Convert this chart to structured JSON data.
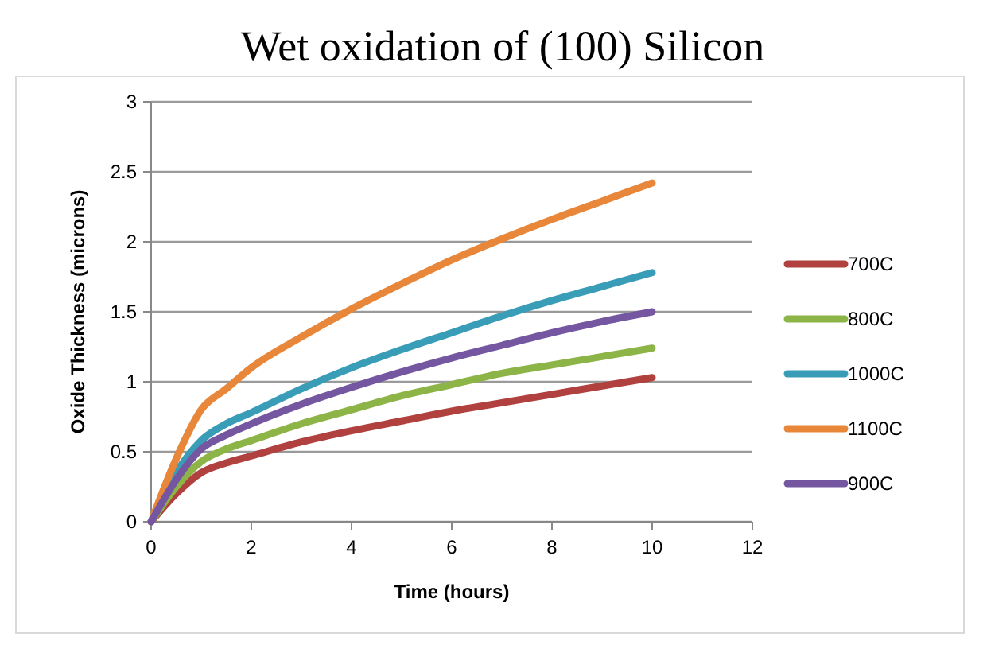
{
  "chart_data": {
    "type": "line",
    "title": "Wet oxidation of (100) Silicon",
    "xlabel": "Time (hours)",
    "ylabel": "Oxide Thickness (microns)",
    "x": [
      0,
      0.5,
      1,
      1.5,
      2,
      3,
      4,
      5,
      6,
      7,
      8,
      9,
      10
    ],
    "series": [
      {
        "name": "700C",
        "color": "#b0413e",
        "values": [
          0,
          0.2,
          0.35,
          0.42,
          0.47,
          0.57,
          0.65,
          0.72,
          0.79,
          0.85,
          0.91,
          0.97,
          1.03
        ]
      },
      {
        "name": "800C",
        "color": "#8db446",
        "values": [
          0,
          0.25,
          0.43,
          0.52,
          0.58,
          0.7,
          0.8,
          0.9,
          0.98,
          1.06,
          1.12,
          1.18,
          1.24
        ]
      },
      {
        "name": "1000C",
        "color": "#3a9db8",
        "values": [
          0,
          0.35,
          0.58,
          0.7,
          0.78,
          0.95,
          1.1,
          1.23,
          1.35,
          1.47,
          1.58,
          1.68,
          1.78
        ]
      },
      {
        "name": "1100C",
        "color": "#e8873a",
        "values": [
          0,
          0.45,
          0.8,
          0.95,
          1.1,
          1.32,
          1.52,
          1.7,
          1.87,
          2.02,
          2.16,
          2.29,
          2.42
        ]
      },
      {
        "name": "900C",
        "color": "#7457a0",
        "values": [
          0,
          0.3,
          0.52,
          0.62,
          0.7,
          0.84,
          0.96,
          1.07,
          1.17,
          1.26,
          1.35,
          1.43,
          1.5
        ]
      }
    ],
    "xlim": [
      0,
      12
    ],
    "xticks": [
      0,
      2,
      4,
      6,
      8,
      10,
      12
    ],
    "ylim": [
      0,
      3
    ],
    "yticks": [
      0,
      0.5,
      1,
      1.5,
      2,
      2.5,
      3
    ],
    "grid": "y",
    "legend": "right",
    "marker": "none",
    "line_style": "solid"
  }
}
